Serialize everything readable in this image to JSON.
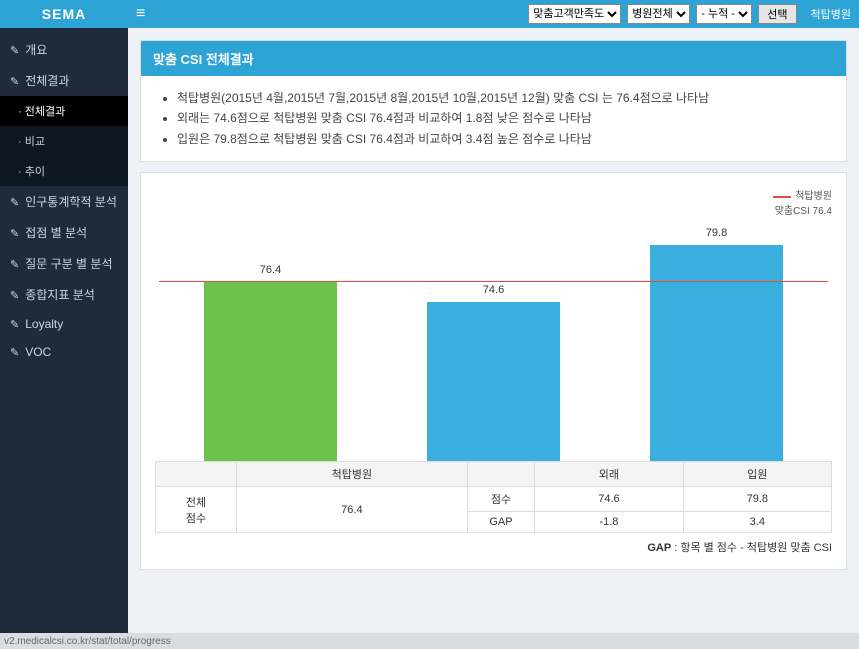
{
  "brand": "SEMA",
  "topbar": {
    "select1": "맞춤고객만족도",
    "select2": "병원전체",
    "select3": "- 누적 -",
    "button": "선택",
    "right_label": "척탑병원"
  },
  "sidebar": {
    "items": [
      {
        "label": "개요"
      },
      {
        "label": "전체결과",
        "sub": [
          {
            "label": "전체결과",
            "active": true
          },
          {
            "label": "비교"
          },
          {
            "label": "추이"
          }
        ]
      },
      {
        "label": "인구통계학적 분석"
      },
      {
        "label": "접점 별 분석"
      },
      {
        "label": "질문 구분 별 분석"
      },
      {
        "label": "종합지표 분석"
      },
      {
        "label": "Loyalty"
      },
      {
        "label": "VOC"
      }
    ]
  },
  "panel": {
    "title": "맞춤 CSI 전체결과",
    "bullets": [
      "척탑병원(2015년 4월,2015년 7월,2015년 8월,2015년 10월,2015년 12월) 맞춤 CSI 는 76.4점으로 나타남",
      "외래는 74.6점으로 척탑병원 맞춤 CSI 76.4점과 비교하여 1.8점 낮은 점수로 나타남",
      "입원은 79.8점으로 척탑병원 맞춤 CSI 76.4점과 비교하여 3.4점 높은 점수로 나타남"
    ]
  },
  "chart": {
    "type": "bar",
    "legend_ref_label": "척탑병원",
    "legend_ref_value": "맞춤CSI 76.4",
    "ref_value": 76.4,
    "ref_color": "#e74c3c",
    "y_min": 60,
    "y_max": 82,
    "categories": [
      "척탑병원",
      "외래",
      "입원"
    ],
    "values": [
      76.4,
      74.6,
      79.8
    ],
    "bar_colors": [
      "#6cc24a",
      "#3aaede",
      "#3aaede"
    ],
    "background": "#ffffff"
  },
  "table": {
    "row1_header": "전체\n점수",
    "col_headers": [
      "척탑병원",
      "",
      "외래",
      "입원"
    ],
    "sub_rows": [
      {
        "label": "점수",
        "vals": [
          "74.6",
          "79.8"
        ]
      },
      {
        "label": "GAP",
        "vals": [
          "-1.8",
          "3.4"
        ]
      }
    ],
    "overall_score": "76.4",
    "gap_note_bold": "GAP",
    "gap_note_rest": " : 항목 별 점수 - 척탑병원 맞춤 CSI"
  },
  "statusbar": "v2.medicalcsi.co.kr/stat/total/progress"
}
